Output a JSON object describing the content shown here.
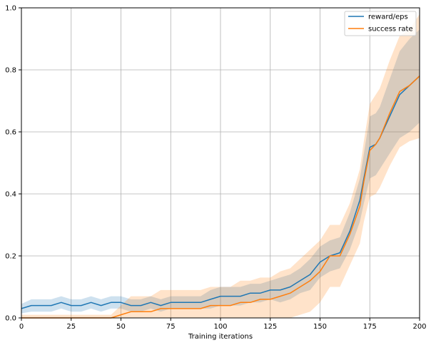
{
  "chart_data": {
    "type": "line",
    "title": "",
    "xlabel": "Training iterations",
    "ylabel": "",
    "xlim": [
      0,
      200
    ],
    "ylim": [
      0,
      1.0
    ],
    "grid": true,
    "legend_position": "top-right",
    "x_ticks": [
      0,
      25,
      50,
      75,
      100,
      125,
      150,
      175,
      200
    ],
    "y_ticks": [
      0.0,
      0.2,
      0.4,
      0.6,
      0.8,
      1.0
    ],
    "x_tick_labels": [
      "0",
      "25",
      "50",
      "75",
      "100",
      "125",
      "150",
      "175",
      "200"
    ],
    "y_tick_labels": [
      "0.0",
      "0.2",
      "0.4",
      "0.6",
      "0.8",
      "1.0"
    ],
    "x": [
      0,
      5,
      10,
      15,
      20,
      25,
      30,
      35,
      40,
      45,
      50,
      55,
      60,
      65,
      70,
      75,
      80,
      85,
      90,
      95,
      100,
      105,
      110,
      115,
      120,
      125,
      130,
      135,
      140,
      145,
      150,
      155,
      160,
      165,
      170,
      172,
      175,
      178,
      180,
      185,
      190,
      195,
      200
    ],
    "series": [
      {
        "name": "reward/eps",
        "color": "#1f77b4",
        "values": [
          0.03,
          0.04,
          0.04,
          0.04,
          0.05,
          0.04,
          0.04,
          0.05,
          0.04,
          0.05,
          0.05,
          0.04,
          0.04,
          0.05,
          0.04,
          0.05,
          0.05,
          0.05,
          0.05,
          0.06,
          0.07,
          0.07,
          0.07,
          0.08,
          0.08,
          0.09,
          0.09,
          0.1,
          0.12,
          0.14,
          0.18,
          0.2,
          0.21,
          0.28,
          0.38,
          0.45,
          0.55,
          0.56,
          0.58,
          0.65,
          0.72,
          0.75,
          0.78
        ],
        "band": [
          0.015,
          0.02,
          0.02,
          0.02,
          0.02,
          0.02,
          0.02,
          0.02,
          0.02,
          0.02,
          0.02,
          0.02,
          0.02,
          0.02,
          0.02,
          0.02,
          0.02,
          0.02,
          0.02,
          0.03,
          0.03,
          0.03,
          0.03,
          0.03,
          0.03,
          0.03,
          0.04,
          0.04,
          0.04,
          0.05,
          0.05,
          0.05,
          0.05,
          0.06,
          0.07,
          0.08,
          0.1,
          0.1,
          0.1,
          0.12,
          0.14,
          0.15,
          0.15
        ]
      },
      {
        "name": "success rate",
        "color": "#ff7f0e",
        "values": [
          0.0,
          0.0,
          0.0,
          0.0,
          0.0,
          0.0,
          0.0,
          0.0,
          0.0,
          0.0,
          0.01,
          0.02,
          0.02,
          0.02,
          0.03,
          0.03,
          0.03,
          0.03,
          0.03,
          0.04,
          0.04,
          0.04,
          0.05,
          0.05,
          0.06,
          0.06,
          0.07,
          0.08,
          0.1,
          0.12,
          0.15,
          0.2,
          0.2,
          0.27,
          0.36,
          0.44,
          0.54,
          0.56,
          0.58,
          0.66,
          0.73,
          0.75,
          0.78
        ],
        "band": [
          0.01,
          0.01,
          0.01,
          0.01,
          0.01,
          0.01,
          0.01,
          0.01,
          0.01,
          0.01,
          0.03,
          0.05,
          0.05,
          0.05,
          0.06,
          0.06,
          0.06,
          0.06,
          0.06,
          0.06,
          0.06,
          0.06,
          0.07,
          0.07,
          0.07,
          0.07,
          0.08,
          0.08,
          0.09,
          0.1,
          0.1,
          0.1,
          0.1,
          0.1,
          0.12,
          0.13,
          0.15,
          0.16,
          0.16,
          0.17,
          0.18,
          0.18,
          0.2
        ]
      }
    ]
  }
}
